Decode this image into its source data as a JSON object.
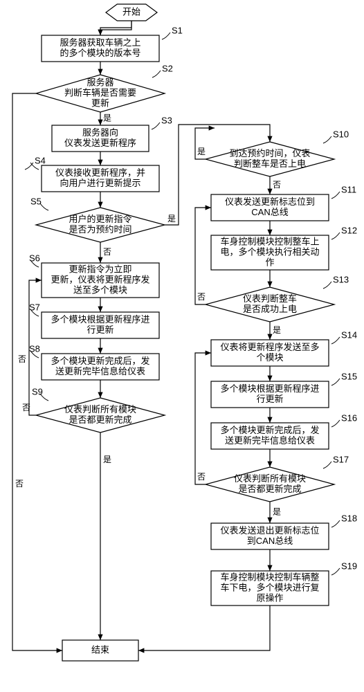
{
  "colors": {
    "stroke": "#000000",
    "fill": "#ffffff",
    "bg": "#ffffff",
    "text": "#000000"
  },
  "stroke_width": 1.2,
  "font_size_box": 13,
  "font_size_label": 13,
  "font_size_edge": 12,
  "start_end": {
    "start": "开始",
    "end": "结束"
  },
  "edges": {
    "yes": "是",
    "no": "否"
  },
  "steps": {
    "s1": {
      "label": "S1",
      "lines": [
        "服务器获取车辆之上",
        "的多个模块的版本号"
      ]
    },
    "s2": {
      "label": "S2",
      "lines": [
        "服务器",
        "判断车辆是否需要",
        "更新"
      ]
    },
    "s3": {
      "label": "S3",
      "lines": [
        "服务器向",
        "仪表发送更新程序"
      ]
    },
    "s4": {
      "label": "S4",
      "lines": [
        "仪表接收更新程序，并",
        "向用户进行更新提示"
      ]
    },
    "s5": {
      "label": "S5",
      "lines": [
        "用户的更新指令",
        "是否为预约时间"
      ]
    },
    "s6": {
      "label": "S6",
      "lines": [
        "更新指令为立即",
        "更新，仪表将更新程序发",
        "送至多个模块"
      ]
    },
    "s7": {
      "label": "S7",
      "lines": [
        "多个模块根据更新程序进",
        "行更新"
      ]
    },
    "s8": {
      "label": "S8",
      "lines": [
        "多个模块更新完成后，发",
        "送更新完毕信息给仪表"
      ]
    },
    "s9": {
      "label": "S9",
      "lines": [
        "仪表判断所有模块",
        "是否都更新完成"
      ]
    },
    "s10": {
      "label": "S10",
      "lines": [
        "到达预约时间，仪表",
        "判断整车是否上电"
      ]
    },
    "s11": {
      "label": "S11",
      "lines": [
        "仪表发送更新标志位到",
        "CAN总线"
      ]
    },
    "s12": {
      "label": "S12",
      "lines": [
        "车身控制模块控制整车上",
        "电，多个模块执行相关动",
        "作"
      ]
    },
    "s13": {
      "label": "S13",
      "lines": [
        "仪表判断整车",
        "是否成功上电"
      ]
    },
    "s14": {
      "label": "S14",
      "lines": [
        "仪表将更新程序发送至多",
        "个模块"
      ]
    },
    "s15": {
      "label": "S15",
      "lines": [
        "多个模块根据更新程序进",
        "行更新"
      ]
    },
    "s16": {
      "label": "S16",
      "lines": [
        "多个模块更新完成后，发",
        "送更新完毕信息给仪表"
      ]
    },
    "s17": {
      "label": "S17",
      "lines": [
        "仪表判断所有模块",
        "是否都更新完成"
      ]
    },
    "s18": {
      "label": "S18",
      "lines": [
        "仪表发送退出更新标志位",
        "到CAN总线"
      ]
    },
    "s19": {
      "label": "S19",
      "lines": [
        "车身控制模块控制车辆整",
        "车下电，多个模块进行复",
        "原操作"
      ]
    }
  }
}
